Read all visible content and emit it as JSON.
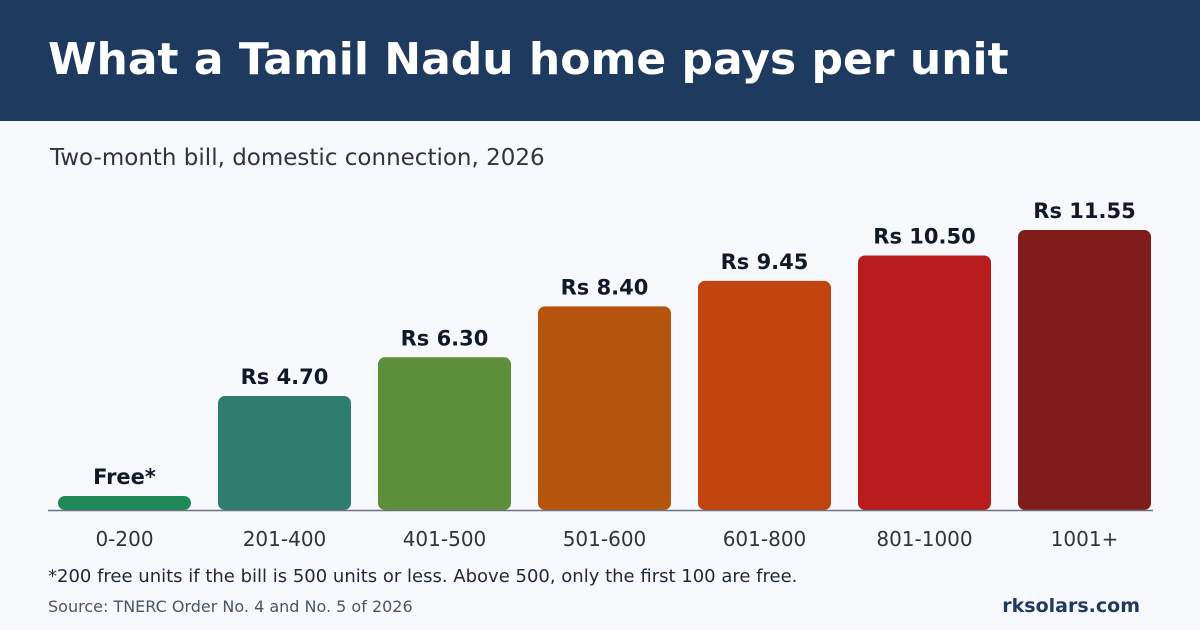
{
  "header": {
    "title": "What a Tamil Nadu home pays per unit"
  },
  "subtitle": "Two-month bill, domestic connection, 2026",
  "chart_data": {
    "type": "bar",
    "categories": [
      "0-200",
      "201-400",
      "401-500",
      "501-600",
      "601-800",
      "801-1000",
      "1001+"
    ],
    "values": [
      0,
      4.7,
      6.3,
      8.4,
      9.45,
      10.5,
      11.55
    ],
    "data_labels": [
      "Free*",
      "Rs 4.70",
      "Rs 6.30",
      "Rs 8.40",
      "Rs 9.45",
      "Rs 10.50",
      "Rs 11.55"
    ],
    "colors": [
      "#1f8a57",
      "#2e7d6e",
      "#5d8f3a",
      "#b5540d",
      "#c1440e",
      "#b91c1c",
      "#7f1d1d"
    ],
    "ylim": [
      0,
      11.55
    ],
    "grid": false,
    "legend": "none"
  },
  "footnote": "*200 free units if the bill is 500 units or less. Above 500, only the first 100 are free.",
  "source": "Source: TNERC Order No. 4 and No. 5 of 2026",
  "brand": "rksolars.com"
}
